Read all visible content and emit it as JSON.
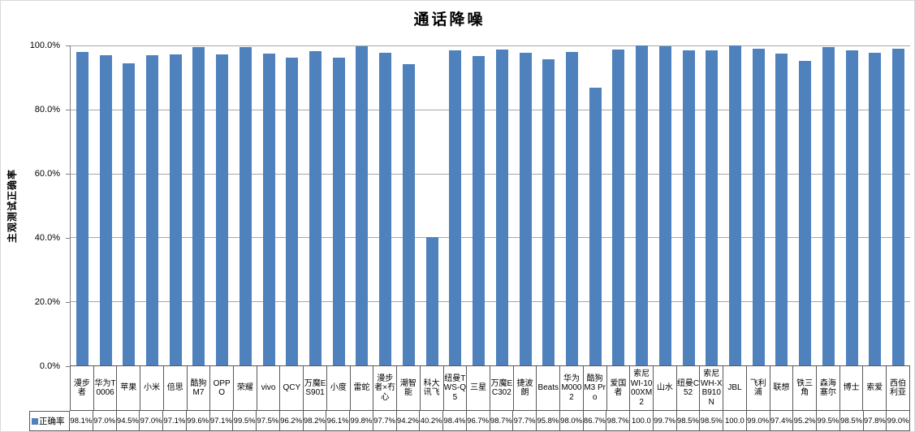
{
  "title": "通话降噪",
  "y_axis": {
    "label": "主观测试正确率",
    "ticks": [
      "100.0%",
      "80.0%",
      "60.0%",
      "40.0%",
      "20.0%",
      "0.0%"
    ]
  },
  "legend": {
    "series_label": "正确率"
  },
  "colors": {
    "bar": "#4F81BD",
    "gridline": "#A6A6A6",
    "axis": "#808080",
    "table_border": "#595959"
  },
  "chart_data": {
    "type": "bar",
    "title": "通话降噪",
    "xlabel": "",
    "ylabel": "主观测试正确率",
    "ylim": [
      0,
      100
    ],
    "grid": true,
    "legend_position": "data-table-left",
    "data_table_shown": true,
    "series_name": "正确率",
    "categories": [
      "漫步者",
      "华为T0006",
      "苹果",
      "小米",
      "倍思",
      "酷狗M7",
      "OPPO",
      "荣耀",
      "vivo",
      "QCY",
      "万魔ES901",
      "小度",
      "雷蛇",
      "漫步者×冇心",
      "潮智能",
      "科大讯飞",
      "纽曼TWS-Q5",
      "三星",
      "万魔EC302",
      "捷波朗",
      "Beats",
      "华为M0002",
      "酷狗M3 Pro",
      "爱国者",
      "索尼WI-1000XM2",
      "山水",
      "纽曼C52",
      "索尼WH-XB910N",
      "JBL",
      "飞利浦",
      "联想",
      "铁三角",
      "森海塞尔",
      "博士",
      "索爱",
      "西伯利亚"
    ],
    "values": [
      98.1,
      97.0,
      94.5,
      97.0,
      97.1,
      99.6,
      97.1,
      99.5,
      97.5,
      96.2,
      98.2,
      96.1,
      99.8,
      97.7,
      94.2,
      40.2,
      98.4,
      96.7,
      98.7,
      97.7,
      95.8,
      98.0,
      86.7,
      98.7,
      100.0,
      99.7,
      98.5,
      98.5,
      100.0,
      99.0,
      97.4,
      95.2,
      99.5,
      98.5,
      97.8,
      99.0
    ],
    "display_values": [
      "98.1%",
      "97.0%",
      "94.5%",
      "97.0%",
      "97.1%",
      "99.6%",
      "97.1%",
      "99.5%",
      "97.5%",
      "96.2%",
      "98.2%",
      "96.1%",
      "99.8%",
      "97.7%",
      "94.2%",
      "40.2%",
      "98.4%",
      "96.7%",
      "98.7%",
      "97.7%",
      "95.8%",
      "98.0%",
      "86.7%",
      "98.7%",
      "100.0",
      "99.7%",
      "98.5%",
      "98.5%",
      "100.0",
      "99.0%",
      "97.4%",
      "95.2%",
      "99.5%",
      "98.5%",
      "97.8%",
      "99.0%"
    ]
  }
}
